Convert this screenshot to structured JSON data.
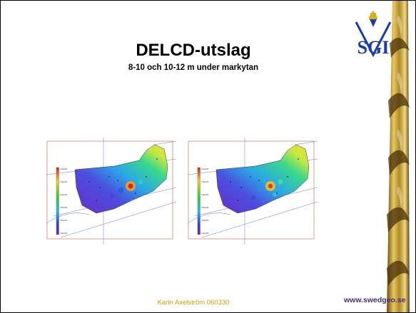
{
  "slide": {
    "title": "DELCD-utslag",
    "subtitle": "8-10 och 10-12 m under markytan",
    "author_date": "Karin Axelström 060330",
    "website": "www.swedgeo.se"
  },
  "logo": {
    "text": "SGI"
  },
  "colors": {
    "logo_blue": "#1a3ea8",
    "logo_gold": "#d8b020",
    "author_text": "#c8a000",
    "url_text": "#4a2a7a",
    "frame": "#c88a70"
  },
  "maps": [
    {
      "id": "8-10m",
      "scale_labels": [
        "1.2E+004",
        "7.0E+003",
        "4.0E+003",
        "2.5E+003",
        "1.5E+003",
        "1.0E+003"
      ]
    },
    {
      "id": "10-12m",
      "scale_labels": [
        "1.2E+004",
        "7.0E+003",
        "4.0E+003",
        "2.5E+003",
        "1.5E+003",
        "1.0E+003"
      ]
    }
  ]
}
